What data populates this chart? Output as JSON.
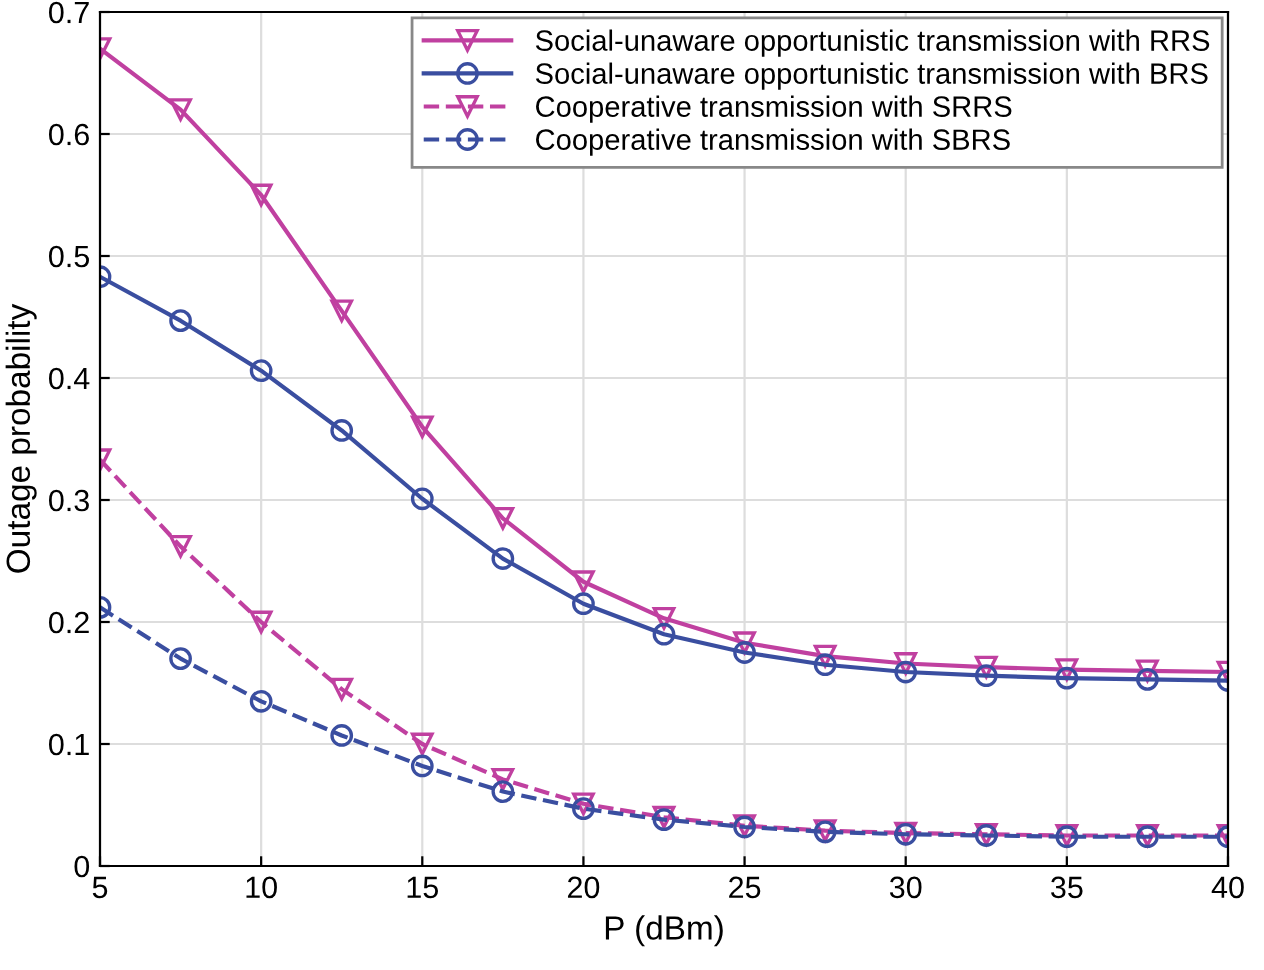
{
  "chart_data": {
    "type": "line",
    "xlabel": "P (dBm)",
    "ylabel": "Outage probability",
    "x": [
      5,
      7.5,
      10,
      12.5,
      15,
      17.5,
      20,
      22.5,
      25,
      27.5,
      30,
      32.5,
      35,
      37.5,
      40
    ],
    "series": [
      {
        "name": "Social-unaware opportunistic transmission with RRS",
        "color": "#c040a0",
        "marker": "triangle",
        "line_style": "solid",
        "values": [
          0.67,
          0.62,
          0.55,
          0.455,
          0.36,
          0.285,
          0.233,
          0.203,
          0.183,
          0.172,
          0.166,
          0.163,
          0.161,
          0.16,
          0.159
        ]
      },
      {
        "name": "Social-unaware opportunistic transmission with BRS",
        "color": "#3a4ea0",
        "marker": "circle",
        "line_style": "solid",
        "values": [
          0.483,
          0.447,
          0.406,
          0.357,
          0.301,
          0.252,
          0.215,
          0.19,
          0.175,
          0.165,
          0.159,
          0.156,
          0.154,
          0.153,
          0.152
        ]
      },
      {
        "name": "Cooperative transmission with SRRS",
        "color": "#c040a0",
        "marker": "triangle",
        "line_style": "dashed",
        "values": [
          0.333,
          0.262,
          0.2,
          0.145,
          0.1,
          0.071,
          0.051,
          0.04,
          0.033,
          0.029,
          0.027,
          0.026,
          0.025,
          0.025,
          0.025
        ]
      },
      {
        "name": "Cooperative transmission with SBRS",
        "color": "#3a4ea0",
        "marker": "circle",
        "line_style": "dashed",
        "values": [
          0.212,
          0.17,
          0.135,
          0.107,
          0.082,
          0.061,
          0.047,
          0.038,
          0.032,
          0.028,
          0.026,
          0.025,
          0.024,
          0.024,
          0.024
        ]
      }
    ],
    "xlim": [
      5,
      40
    ],
    "xticks": [
      5,
      10,
      15,
      20,
      25,
      30,
      35,
      40
    ],
    "ylim": [
      0,
      0.7
    ],
    "yticks": [
      0,
      0.1,
      0.2,
      0.3,
      0.4,
      0.5,
      0.6,
      0.7
    ],
    "grid": true,
    "legend": "top right"
  }
}
